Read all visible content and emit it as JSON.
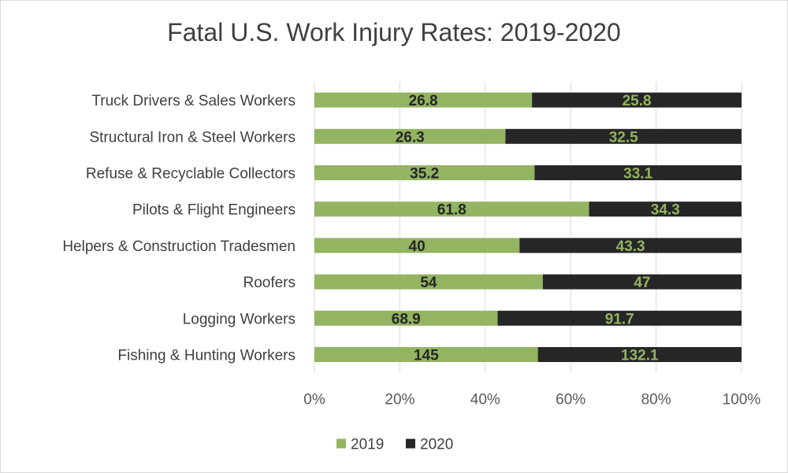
{
  "chart_data": {
    "type": "bar",
    "orientation": "horizontal",
    "stacking": "percent",
    "title": "Fatal U.S. Work Injury Rates: 2019-2020",
    "categories": [
      "Truck Drivers & Sales Workers",
      "Structural Iron & Steel Workers",
      "Refuse & Recyclable Collectors",
      "Pilots & Flight Engineers",
      "Helpers & Construction Tradesmen",
      "Roofers",
      "Logging Workers",
      "Fishing & Hunting Workers"
    ],
    "series": [
      {
        "name": "2019",
        "color": "#93b461",
        "label_color": "#262626",
        "values": [
          26.8,
          26.3,
          35.2,
          61.8,
          40,
          54,
          68.9,
          145
        ]
      },
      {
        "name": "2020",
        "color": "#262626",
        "label_color": "#93b461",
        "values": [
          25.8,
          32.5,
          33.1,
          34.3,
          43.3,
          47,
          91.7,
          132.1
        ]
      }
    ],
    "xlim": [
      0,
      100
    ],
    "x_ticks": [
      "0%",
      "20%",
      "40%",
      "60%",
      "80%",
      "100%"
    ],
    "grid": true,
    "legend_position": "bottom"
  }
}
